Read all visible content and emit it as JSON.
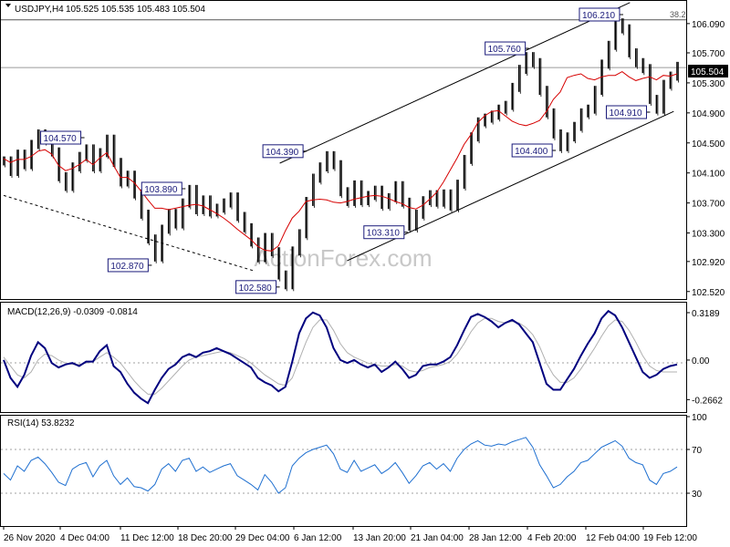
{
  "chart_data": [
    {
      "type": "candlestick",
      "title": "USDJPY,H4",
      "ohlc": "105.525 105.535 105.483 105.504",
      "last_price": "105.504",
      "watermark": "ActionForex.com",
      "fib_label": "38.2",
      "fib_level": 106.14,
      "ylim": [
        102.42,
        106.38
      ],
      "yticks": [
        "106.090",
        "105.700",
        "105.300",
        "104.900",
        "104.500",
        "104.100",
        "103.700",
        "103.300",
        "102.920",
        "102.520"
      ],
      "xticks": [
        "26 Nov 2020",
        "4 Dec 04:00",
        "11 Dec 12:00",
        "18 Dec 20:00",
        "29 Dec 04:00",
        "6 Jan 12:00",
        "13 Jan 20:00",
        "21 Jan 04:00",
        "28 Jan 12:00",
        "4 Feb 20:00",
        "12 Feb 04:00",
        "19 Feb 12:00"
      ],
      "annotations": [
        {
          "text": "104.570",
          "value": 104.57
        },
        {
          "text": "103.890",
          "value": 103.89
        },
        {
          "text": "102.870",
          "value": 102.87
        },
        {
          "text": "102.580",
          "value": 102.58
        },
        {
          "text": "104.390",
          "value": 104.39
        },
        {
          "text": "103.310",
          "value": 103.31
        },
        {
          "text": "105.760",
          "value": 105.76
        },
        {
          "text": "104.400",
          "value": 104.4
        },
        {
          "text": "106.210",
          "value": 106.21
        },
        {
          "text": "104.910",
          "value": 104.91
        }
      ],
      "price_series": [
        104.26,
        104.12,
        104.35,
        104.21,
        104.48,
        104.62,
        104.55,
        104.38,
        104.05,
        103.92,
        104.18,
        104.32,
        104.42,
        104.18,
        104.37,
        104.55,
        104.24,
        103.98,
        104.07,
        103.82,
        103.55,
        103.22,
        102.98,
        103.35,
        103.56,
        103.42,
        103.7,
        103.88,
        103.61,
        103.74,
        103.58,
        103.63,
        103.7,
        103.78,
        103.52,
        103.37,
        103.18,
        102.97,
        103.24,
        103.05,
        102.74,
        102.61,
        103.06,
        103.29,
        103.72,
        104.03,
        104.18,
        104.33,
        104.21,
        103.85,
        103.72,
        103.94,
        103.73,
        103.8,
        103.87,
        103.68,
        103.77,
        103.93,
        103.71,
        103.39,
        103.55,
        103.73,
        103.81,
        103.71,
        103.82,
        103.66,
        103.95,
        104.28,
        104.58,
        104.78,
        104.83,
        104.87,
        104.95,
        105.0,
        105.24,
        105.48,
        105.65,
        105.57,
        105.2,
        104.9,
        104.62,
        104.45,
        104.58,
        104.72,
        104.9,
        104.95,
        105.2,
        105.55,
        105.8,
        106.1,
        106.02,
        105.7,
        105.57,
        105.49,
        105.08,
        104.95,
        105.28,
        105.39,
        105.52
      ],
      "ma_series": [
        104.29,
        104.24,
        104.28,
        104.28,
        104.32,
        104.39,
        104.41,
        104.35,
        104.2,
        104.13,
        104.16,
        104.21,
        104.28,
        104.21,
        104.3,
        104.37,
        104.2,
        104.04,
        104.04,
        103.97,
        103.86,
        103.74,
        103.63,
        103.63,
        103.61,
        103.63,
        103.65,
        103.67,
        103.68,
        103.66,
        103.61,
        103.56,
        103.5,
        103.43,
        103.35,
        103.28,
        103.21,
        103.12,
        103.07,
        103.06,
        103.13,
        103.33,
        103.5,
        103.59,
        103.72,
        103.74,
        103.75,
        103.74,
        103.71,
        103.7,
        103.72,
        103.75,
        103.77,
        103.79,
        103.8,
        103.79,
        103.76,
        103.72,
        103.69,
        103.64,
        103.62,
        103.67,
        103.75,
        103.84,
        103.98,
        104.14,
        104.3,
        104.48,
        104.61,
        104.77,
        104.86,
        104.92,
        104.93,
        104.86,
        104.79,
        104.75,
        104.73,
        104.76,
        104.8,
        104.92,
        105.08,
        105.18,
        105.37,
        105.4,
        105.42,
        105.36,
        105.34,
        105.38,
        105.4,
        105.4,
        105.45,
        105.38,
        105.33,
        105.36,
        105.38,
        105.34,
        105.4,
        105.39,
        105.42
      ],
      "channels": [
        {
          "name": "lower-channel-a",
          "from": [
            0.0,
            103.8
          ],
          "to": [
            0.37,
            102.8
          ]
        },
        {
          "name": "upper-channel-b",
          "from": [
            0.41,
            104.23
          ],
          "to": [
            0.93,
            106.37
          ]
        },
        {
          "name": "lower-channel-b",
          "from": [
            0.51,
            102.93
          ],
          "to": [
            0.995,
            104.92
          ]
        }
      ]
    },
    {
      "type": "line",
      "label": "MACD(12,26,9) -0.0309 -0.0814",
      "yticks": [
        "0.3189",
        "0.00",
        "-0.2662"
      ],
      "ylim": [
        -0.35,
        0.38
      ],
      "macd": [
        0.0,
        -0.12,
        -0.18,
        -0.1,
        0.03,
        0.12,
        0.08,
        -0.02,
        -0.05,
        -0.03,
        -0.02,
        -0.04,
        -0.01,
        -0.01,
        0.06,
        0.1,
        -0.04,
        -0.08,
        -0.16,
        -0.22,
        -0.26,
        -0.29,
        -0.2,
        -0.12,
        -0.06,
        -0.03,
        0.02,
        0.04,
        0.02,
        0.05,
        0.06,
        0.08,
        0.06,
        0.04,
        0.01,
        -0.02,
        -0.05,
        -0.12,
        -0.15,
        -0.17,
        -0.21,
        -0.18,
        -0.01,
        0.18,
        0.28,
        0.32,
        0.3,
        0.22,
        0.08,
        0.0,
        -0.02,
        0.0,
        -0.03,
        -0.05,
        -0.03,
        -0.08,
        -0.05,
        -0.01,
        -0.06,
        -0.12,
        -0.1,
        -0.04,
        -0.03,
        -0.03,
        -0.01,
        0.02,
        0.1,
        0.2,
        0.29,
        0.31,
        0.29,
        0.26,
        0.22,
        0.25,
        0.27,
        0.24,
        0.18,
        0.12,
        -0.02,
        -0.16,
        -0.2,
        -0.2,
        -0.13,
        -0.06,
        0.03,
        0.11,
        0.18,
        0.28,
        0.33,
        0.3,
        0.22,
        0.12,
        0.02,
        -0.08,
        -0.12,
        -0.1,
        -0.06,
        -0.04,
        -0.03
      ],
      "signal": [
        0.02,
        -0.04,
        -0.1,
        -0.12,
        -0.08,
        0.0,
        0.04,
        0.03,
        0.0,
        -0.02,
        -0.03,
        -0.03,
        -0.02,
        -0.01,
        0.02,
        0.05,
        0.02,
        -0.02,
        -0.08,
        -0.14,
        -0.19,
        -0.23,
        -0.23,
        -0.19,
        -0.14,
        -0.09,
        -0.04,
        0.0,
        0.02,
        0.03,
        0.04,
        0.05,
        0.06,
        0.05,
        0.03,
        0.01,
        -0.02,
        -0.06,
        -0.1,
        -0.13,
        -0.16,
        -0.17,
        -0.12,
        0.0,
        0.12,
        0.22,
        0.27,
        0.27,
        0.2,
        0.11,
        0.05,
        0.02,
        0.0,
        -0.02,
        -0.03,
        -0.04,
        -0.04,
        -0.03,
        -0.04,
        -0.07,
        -0.08,
        -0.07,
        -0.05,
        -0.04,
        -0.03,
        -0.01,
        0.04,
        0.11,
        0.19,
        0.25,
        0.28,
        0.28,
        0.26,
        0.25,
        0.26,
        0.25,
        0.22,
        0.17,
        0.09,
        -0.02,
        -0.1,
        -0.15,
        -0.15,
        -0.12,
        -0.06,
        0.01,
        0.08,
        0.16,
        0.23,
        0.27,
        0.26,
        0.2,
        0.12,
        0.03,
        -0.04,
        -0.07,
        -0.08,
        -0.08,
        -0.08
      ]
    },
    {
      "type": "line",
      "label": "RSI(14) 53.8232",
      "yticks": [
        "100",
        "70",
        "30"
      ],
      "ylim": [
        0,
        100
      ],
      "levels": [
        70,
        30
      ],
      "rsi": [
        48,
        42,
        55,
        50,
        60,
        63,
        57,
        49,
        40,
        37,
        52,
        56,
        58,
        45,
        55,
        60,
        46,
        38,
        44,
        36,
        35,
        32,
        38,
        52,
        57,
        50,
        60,
        62,
        50,
        54,
        49,
        52,
        55,
        57,
        46,
        42,
        38,
        33,
        47,
        40,
        30,
        35,
        55,
        62,
        67,
        70,
        72,
        74,
        66,
        52,
        49,
        60,
        50,
        53,
        56,
        48,
        52,
        58,
        49,
        39,
        46,
        55,
        58,
        52,
        57,
        50,
        62,
        70,
        75,
        78,
        74,
        73,
        75,
        74,
        77,
        79,
        81,
        72,
        56,
        46,
        35,
        38,
        45,
        50,
        58,
        60,
        66,
        72,
        75,
        78,
        73,
        62,
        58,
        56,
        42,
        38,
        48,
        50,
        54
      ]
    }
  ]
}
